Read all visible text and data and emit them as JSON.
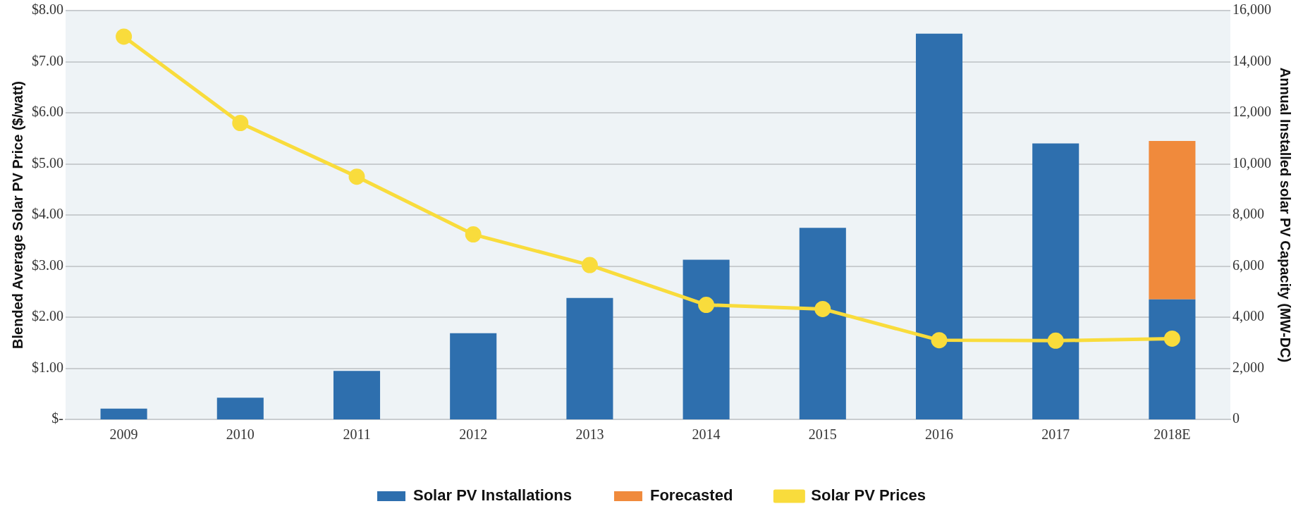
{
  "chart_data": {
    "type": "bar",
    "ylabel": "Blended Average Solar PV Price ($/watt)",
    "y2label": "Annual Installed solar PV Capacity (MW-DC)",
    "categories": [
      "2009",
      "2010",
      "2011",
      "2012",
      "2013",
      "2014",
      "2015",
      "2016",
      "2017",
      "2018E"
    ],
    "stacked": true,
    "series": [
      {
        "name": "Solar PV Installations",
        "axis": "y2",
        "color": "#2e6fae",
        "values": [
          420,
          850,
          1900,
          3370,
          4750,
          6250,
          7500,
          15100,
          10800,
          4700
        ]
      },
      {
        "name": "Forecasted",
        "axis": "y2",
        "color": "#f08a3c",
        "values": [
          null,
          null,
          null,
          null,
          null,
          null,
          null,
          null,
          null,
          6200
        ]
      },
      {
        "name": "Solar PV Prices",
        "type": "line",
        "axis": "y",
        "color": "#f9dc3c",
        "marker": "circle",
        "values": [
          7.49,
          5.8,
          4.75,
          3.62,
          3.02,
          2.24,
          2.16,
          1.55,
          1.54,
          1.58
        ]
      }
    ],
    "ylim": [
      0,
      8
    ],
    "yticks": [
      {
        "value": 0,
        "label": "$-"
      },
      {
        "value": 1,
        "label": "$1.00"
      },
      {
        "value": 2,
        "label": "$2.00"
      },
      {
        "value": 3,
        "label": "$3.00"
      },
      {
        "value": 4,
        "label": "$4.00"
      },
      {
        "value": 5,
        "label": "$5.00"
      },
      {
        "value": 6,
        "label": "$6.00"
      },
      {
        "value": 7,
        "label": "$7.00"
      },
      {
        "value": 8,
        "label": "$8.00"
      }
    ],
    "y2lim": [
      0,
      16000
    ],
    "y2ticks": [
      0,
      {
        "value": 2000,
        "label": "2,000"
      },
      {
        "value": 4000,
        "label": "4,000"
      },
      {
        "value": 6000,
        "label": "6,000"
      },
      {
        "value": 8000,
        "label": "8,000"
      },
      {
        "value": 10000,
        "label": "10,000"
      },
      {
        "value": 12000,
        "label": "12,000"
      },
      {
        "value": 14000,
        "label": "14,000"
      },
      {
        "value": 16000,
        "label": "16,000"
      }
    ],
    "grid": "y",
    "legend": "bottom"
  }
}
